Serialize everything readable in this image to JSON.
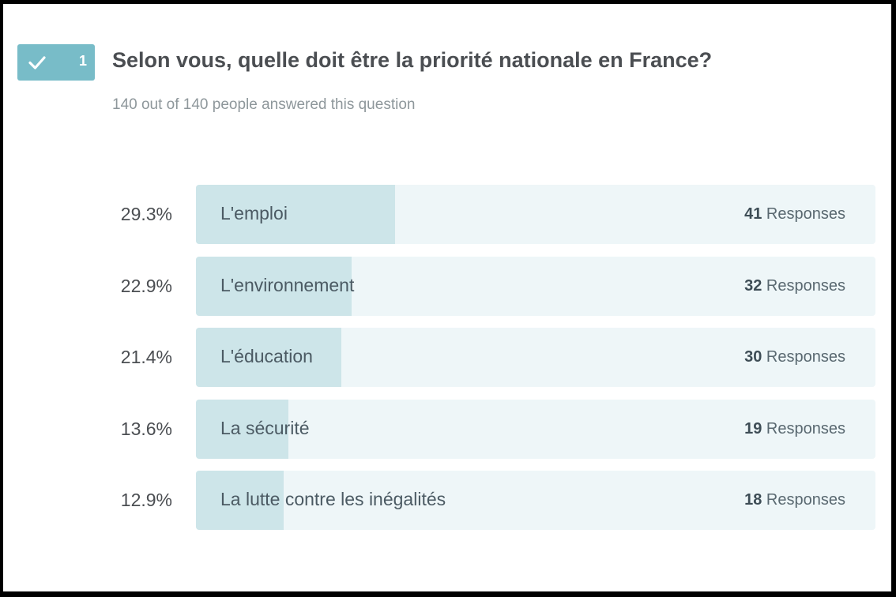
{
  "question": {
    "number": "1",
    "title": "Selon vous, quelle doit être la priorité nationale en France?",
    "answered_text": "140 out of 140 people answered this question"
  },
  "colors": {
    "badge": "#78bcc8",
    "bar_fill": "#cde5e9",
    "bar_track": "#eef6f8"
  },
  "icons": {
    "badge_icon": "check-icon"
  },
  "responses_label": "Responses",
  "chart_data": {
    "type": "bar",
    "orientation": "horizontal",
    "categories": [
      "L'emploi",
      "L'environnement",
      "L'éducation",
      "La sécurité",
      "La lutte contre les inégalités"
    ],
    "values": [
      29.3,
      22.9,
      21.4,
      13.6,
      12.9
    ],
    "value_labels": [
      "29.3%",
      "22.9%",
      "21.4%",
      "13.6%",
      "12.9%"
    ],
    "counts": [
      41,
      32,
      30,
      19,
      18
    ],
    "xlim": [
      0,
      100
    ]
  }
}
